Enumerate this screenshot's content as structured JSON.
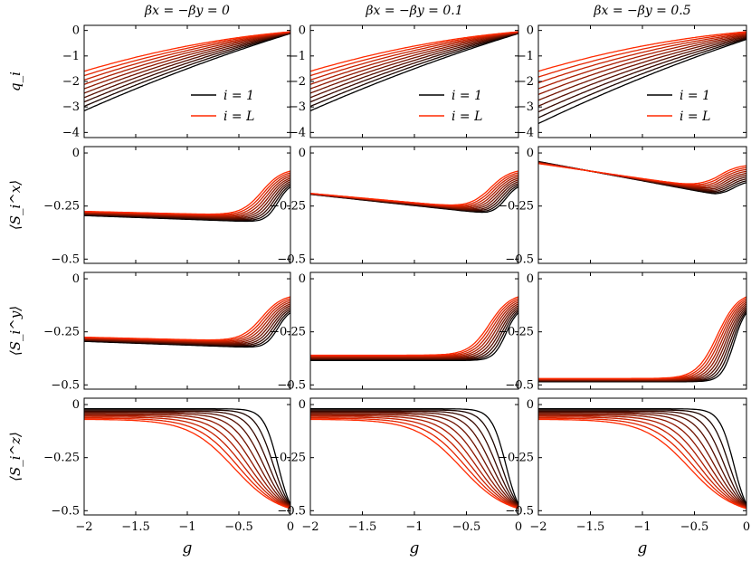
{
  "figure": {
    "column_titles": [
      "βx = −βy = 0",
      "βx = −βy = 0.1",
      "βx = −βy = 0.5"
    ],
    "row_labels": [
      "q_i",
      "⟨S_i^x⟩",
      "⟨S_i^y⟩",
      "⟨S_i^z⟩"
    ],
    "xlabel": "g",
    "legend": [
      "i = 1",
      "i = L"
    ],
    "colors": {
      "first_site": "#000000",
      "last_site": "#ff2a00"
    }
  },
  "chart_data": {
    "type": "line",
    "layout": "grid 4 rows x 3 columns, shared x axis",
    "x_range": [
      -2,
      0
    ],
    "x_ticks": [
      -2,
      -1.5,
      -1,
      -0.5,
      0
    ],
    "x_tick_labels": [
      "−2",
      "−1.5",
      "−1",
      "−0.5",
      "0"
    ],
    "series_count_per_panel": 10,
    "color_gradient": "black (i = 1) to red (i = L)",
    "legend_placement": "lower-right (top row only)",
    "grid": false,
    "rows": [
      {
        "quantity": "q_i",
        "ylim": [
          -4.2,
          0.2
        ],
        "y_ticks": [
          0,
          -1,
          -2,
          -3,
          -4
        ],
        "y_tick_labels": [
          "0",
          "−1",
          "−2",
          "−3",
          "−4"
        ],
        "panels": [
          {
            "shape": "q",
            "y0_first": -3.15,
            "y0_last": -1.6,
            "y_end_first": -0.12,
            "y_end_last": -0.05
          },
          {
            "shape": "q",
            "y0_first": -3.15,
            "y0_last": -1.6,
            "y_end_first": -0.12,
            "y_end_last": -0.05
          },
          {
            "shape": "q",
            "y0_first": -3.65,
            "y0_last": -1.6,
            "y_end_first": -0.35,
            "y_end_last": -0.05
          }
        ]
      },
      {
        "quantity": "S_x",
        "ylim": [
          -0.52,
          0.03
        ],
        "y_ticks": [
          0,
          -0.25,
          -0.5
        ],
        "y_tick_labels": [
          "0",
          "−0.25",
          "−0.5"
        ],
        "panels": [
          {
            "shape": "rise",
            "y0_first": -0.295,
            "y0_last": -0.275,
            "y_min_first": -0.325,
            "y_min_last": -0.295,
            "y_end_first": -0.16,
            "y_end_last": -0.085
          },
          {
            "shape": "dip_rise",
            "y0_first": -0.195,
            "y0_last": -0.19,
            "y_min_first": -0.285,
            "y_min_last": -0.265,
            "y_end_first": -0.16,
            "y_end_last": -0.085
          },
          {
            "shape": "dip_rise",
            "y0_first": -0.04,
            "y0_last": -0.05,
            "y_min_first": -0.195,
            "y_min_last": -0.17,
            "y_end_first": -0.14,
            "y_end_last": -0.06
          }
        ]
      },
      {
        "quantity": "S_y",
        "ylim": [
          -0.52,
          0.03
        ],
        "y_ticks": [
          0,
          -0.25,
          -0.5
        ],
        "y_tick_labels": [
          "0",
          "−0.25",
          "−0.5"
        ],
        "panels": [
          {
            "shape": "rise",
            "y0_first": -0.295,
            "y0_last": -0.275,
            "y_min_first": -0.325,
            "y_min_last": -0.295,
            "y_end_first": -0.16,
            "y_end_last": -0.085
          },
          {
            "shape": "rise",
            "y0_first": -0.385,
            "y0_last": -0.36,
            "y_min_first": -0.385,
            "y_min_last": -0.36,
            "y_end_first": -0.16,
            "y_end_last": -0.085
          },
          {
            "shape": "rise",
            "y0_first": -0.485,
            "y0_last": -0.47,
            "y_min_first": -0.485,
            "y_min_last": -0.47,
            "y_end_first": -0.16,
            "y_end_last": -0.085
          }
        ]
      },
      {
        "quantity": "S_z",
        "ylim": [
          -0.52,
          0.03
        ],
        "y_ticks": [
          0,
          -0.25,
          -0.5
        ],
        "y_tick_labels": [
          "0",
          "−0.25",
          "−0.5"
        ],
        "panels": [
          {
            "shape": "fall",
            "y0_first": -0.02,
            "y0_last": -0.07,
            "g_half_first": -0.12,
            "g_half_last": -0.55,
            "y_end_first": -0.47,
            "y_end_last": -0.49
          },
          {
            "shape": "fall",
            "y0_first": -0.02,
            "y0_last": -0.07,
            "g_half_first": -0.12,
            "g_half_last": -0.55,
            "y_end_first": -0.47,
            "y_end_last": -0.49
          },
          {
            "shape": "fall",
            "y0_first": -0.02,
            "y0_last": -0.07,
            "g_half_first": -0.12,
            "g_half_last": -0.55,
            "y_end_first": -0.47,
            "y_end_last": -0.49
          }
        ]
      }
    ]
  }
}
